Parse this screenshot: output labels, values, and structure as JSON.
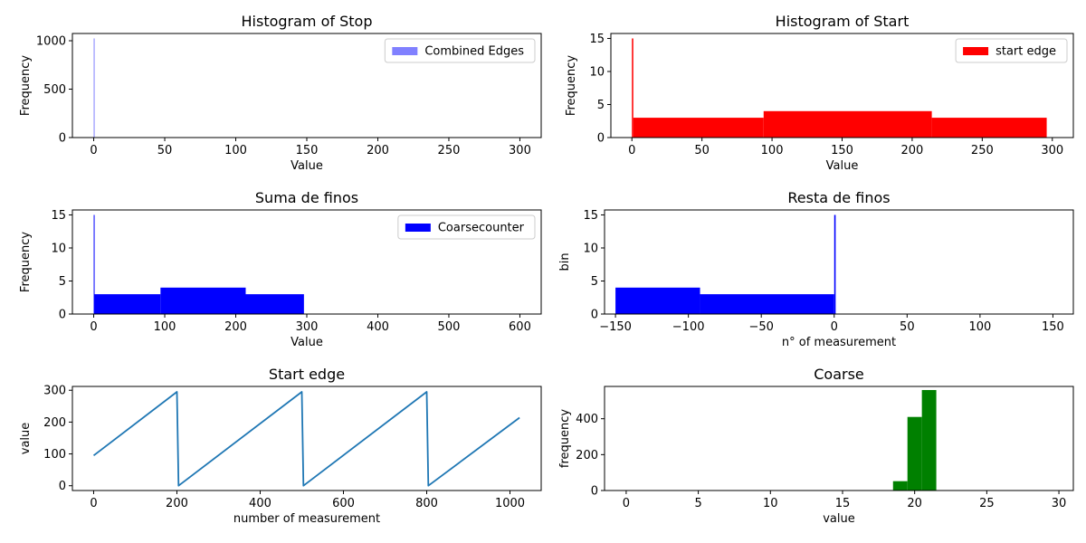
{
  "chart_data": [
    {
      "type": "bar",
      "title": "Histogram of Stop",
      "xlabel": "Value",
      "ylabel": "Frequency",
      "xlim": [
        -15,
        315
      ],
      "ylim": [
        0,
        1075
      ],
      "xticks": [
        0,
        50,
        100,
        150,
        200,
        250,
        300
      ],
      "yticks": [
        0,
        500,
        1000
      ],
      "legend": {
        "location": "top-right",
        "entries": [
          {
            "label": "Combined Edges",
            "color": "#8080ff"
          }
        ]
      },
      "bars": [
        {
          "x0": 0,
          "x1": 0.5,
          "height": 1024,
          "color": "#8080ff"
        }
      ]
    },
    {
      "type": "bar",
      "title": "Histogram of Start",
      "xlabel": "Value",
      "ylabel": "Frequency",
      "xlim": [
        -15,
        315
      ],
      "ylim": [
        0,
        15.75
      ],
      "xticks": [
        0,
        50,
        100,
        150,
        200,
        250,
        300
      ],
      "yticks": [
        0,
        5,
        10,
        15
      ],
      "legend": {
        "location": "top-right",
        "entries": [
          {
            "label": "start edge",
            "color": "#ff0000"
          }
        ]
      },
      "bars": [
        {
          "x0": 0,
          "x1": 1,
          "height": 15,
          "color": "#ff0000"
        },
        {
          "x0": 1,
          "x1": 94,
          "height": 3,
          "color": "#ff0000"
        },
        {
          "x0": 94,
          "x1": 214,
          "height": 4,
          "color": "#ff0000"
        },
        {
          "x0": 214,
          "x1": 296,
          "height": 3,
          "color": "#ff0000"
        }
      ]
    },
    {
      "type": "bar",
      "title": "Suma de finos",
      "xlabel": "Value",
      "ylabel": "Frequency",
      "xlim": [
        -30,
        630
      ],
      "ylim": [
        0,
        15.75
      ],
      "xticks": [
        0,
        100,
        200,
        300,
        400,
        500,
        600
      ],
      "yticks": [
        0,
        5,
        10,
        15
      ],
      "legend": {
        "location": "top-right",
        "entries": [
          {
            "label": "Coarsecounter",
            "color": "#0000ff"
          }
        ]
      },
      "bars": [
        {
          "x0": 0,
          "x1": 1,
          "height": 15,
          "color": "#0000ff"
        },
        {
          "x0": 1,
          "x1": 94,
          "height": 3,
          "color": "#0000ff"
        },
        {
          "x0": 94,
          "x1": 214,
          "height": 4,
          "color": "#0000ff"
        },
        {
          "x0": 214,
          "x1": 296,
          "height": 3,
          "color": "#0000ff"
        }
      ]
    },
    {
      "type": "bar",
      "title": "Resta de finos",
      "xlabel": "n° of measurement",
      "ylabel": "bin",
      "xlim": [
        -157.5,
        164
      ],
      "ylim": [
        0,
        15.75
      ],
      "xticks": [
        -150,
        -100,
        -50,
        0,
        50,
        100,
        150
      ],
      "yticks": [
        0,
        5,
        10,
        15
      ],
      "bars": [
        {
          "x0": -150,
          "x1": -92,
          "height": 4,
          "color": "#0000ff"
        },
        {
          "x0": -92,
          "x1": 0,
          "height": 3,
          "color": "#0000ff"
        },
        {
          "x0": 0,
          "x1": 1,
          "height": 15,
          "color": "#0000ff"
        }
      ]
    },
    {
      "type": "line",
      "title": "Start edge",
      "xlabel": "number of measurement",
      "ylabel": "value",
      "xlim": [
        -51,
        1075
      ],
      "ylim": [
        -15,
        312
      ],
      "xticks": [
        0,
        200,
        400,
        600,
        800,
        1000
      ],
      "yticks": [
        0,
        100,
        200,
        300
      ],
      "series": [
        {
          "color": "#1f77b4",
          "x": [
            0,
            200,
            204,
            500,
            504,
            800,
            804,
            1023
          ],
          "y": [
            95,
            295,
            0,
            295,
            0,
            295,
            0,
            214
          ]
        }
      ]
    },
    {
      "type": "bar",
      "title": "Coarse",
      "xlabel": "value",
      "ylabel": "frequency",
      "xlim": [
        -1.5,
        31
      ],
      "ylim": [
        0,
        580
      ],
      "xticks": [
        0,
        5,
        10,
        15,
        20,
        25,
        30
      ],
      "yticks": [
        0,
        200,
        400
      ],
      "bars": [
        {
          "x0": 18.5,
          "x1": 19.5,
          "height": 52,
          "color": "#008000"
        },
        {
          "x0": 19.5,
          "x1": 20.5,
          "height": 410,
          "color": "#008000"
        },
        {
          "x0": 20.5,
          "x1": 21.5,
          "height": 560,
          "color": "#008000"
        }
      ]
    }
  ]
}
